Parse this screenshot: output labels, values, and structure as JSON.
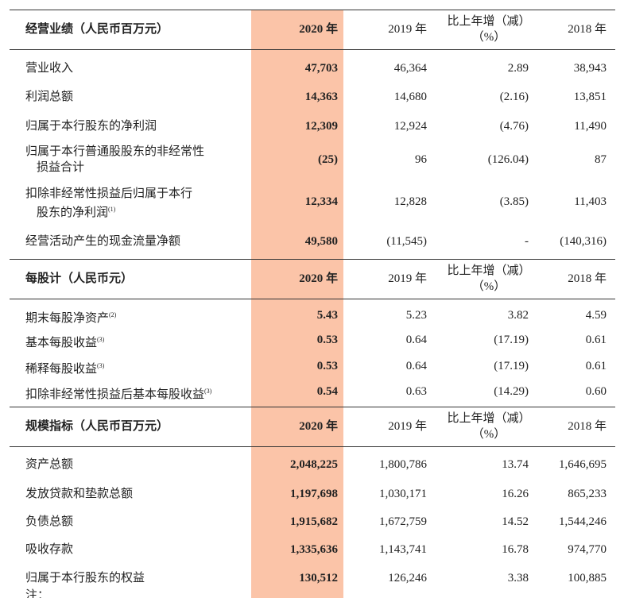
{
  "sections": [
    {
      "header": {
        "label": "经营业绩（人民币百万元）",
        "cols": [
          "2020 年",
          "2019 年",
          [
            "比上年增（减）",
            "（%）"
          ],
          "2018 年"
        ]
      },
      "rows": [
        {
          "label": [
            "营业收入"
          ],
          "values": [
            "47,703",
            "46,364",
            "2.89",
            "38,943"
          ]
        },
        {
          "label": [
            "利润总额"
          ],
          "values": [
            "14,363",
            "14,680",
            "(2.16)",
            "13,851"
          ]
        },
        {
          "label": [
            "归属于本行股东的净利润"
          ],
          "values": [
            "12,309",
            "12,924",
            "(4.76)",
            "11,490"
          ]
        },
        {
          "label": [
            "归属于本行普通股股东的非经常性",
            "损益合计"
          ],
          "values": [
            "(25)",
            "96",
            "(126.04)",
            "87"
          ]
        },
        {
          "label": [
            "扣除非经常性损益后归属于本行",
            "股东的净利润"
          ],
          "note": "(1)",
          "values": [
            "12,334",
            "12,828",
            "(3.85)",
            "11,403"
          ]
        },
        {
          "label": [
            "经营活动产生的现金流量净额"
          ],
          "values": [
            "49,580",
            "(11,545)",
            "-",
            "(140,316)"
          ]
        }
      ]
    },
    {
      "header": {
        "label": "每股计（人民币元）",
        "cols": [
          "2020 年",
          "2019 年",
          [
            "比上年增（减）",
            "（%）"
          ],
          "2018 年"
        ]
      },
      "rows": [
        {
          "label": [
            "期末每股净资产"
          ],
          "note": "(2)",
          "values": [
            "5.43",
            "5.23",
            "3.82",
            "4.59"
          ]
        },
        {
          "label": [
            "基本每股收益"
          ],
          "note": "(3)",
          "values": [
            "0.53",
            "0.64",
            "(17.19)",
            "0.61"
          ]
        },
        {
          "label": [
            "稀释每股收益"
          ],
          "note": "(3)",
          "values": [
            "0.53",
            "0.64",
            "(17.19)",
            "0.61"
          ]
        },
        {
          "label": [
            "扣除非经常性损益后基本每股收益"
          ],
          "note": "(3)",
          "values": [
            "0.54",
            "0.63",
            "(14.29)",
            "0.60"
          ]
        }
      ]
    },
    {
      "header": {
        "label": "规模指标（人民币百万元）",
        "cols": [
          "2020 年",
          "2019 年",
          [
            "比上年增（减）",
            "（%）"
          ],
          "2018 年"
        ]
      },
      "rows": [
        {
          "label": [
            "资产总额"
          ],
          "values": [
            "2,048,225",
            "1,800,786",
            "13.74",
            "1,646,695"
          ]
        },
        {
          "label": [
            "发放贷款和垫款总额"
          ],
          "values": [
            "1,197,698",
            "1,030,171",
            "16.26",
            "865,233"
          ]
        },
        {
          "label": [
            "负债总额"
          ],
          "values": [
            "1,915,682",
            "1,672,759",
            "14.52",
            "1,544,246"
          ]
        },
        {
          "label": [
            "吸收存款"
          ],
          "values": [
            "1,335,636",
            "1,143,741",
            "16.78",
            "974,770"
          ]
        },
        {
          "label": [
            "归属于本行股东的权益"
          ],
          "values": [
            "130,512",
            "126,246",
            "3.38",
            "100,885"
          ]
        }
      ]
    }
  ],
  "footnote": "注："
}
